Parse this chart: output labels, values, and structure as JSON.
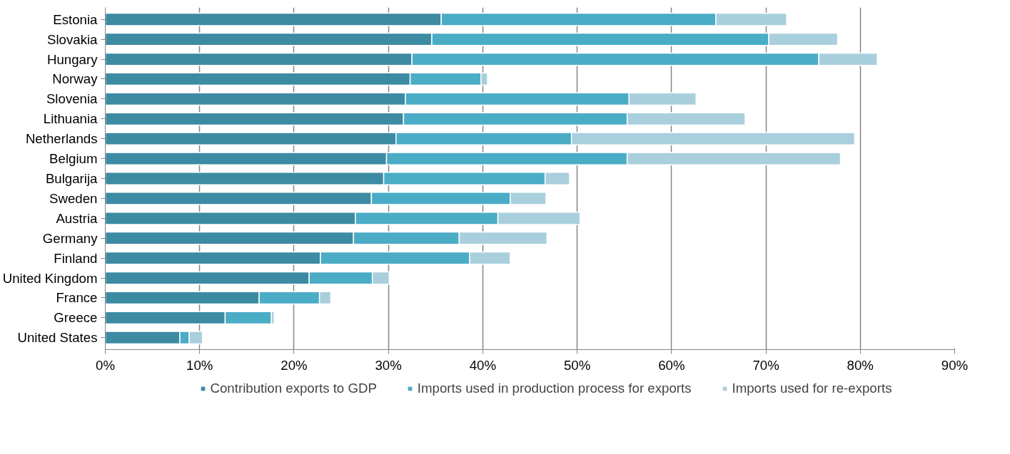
{
  "chart_data": {
    "type": "bar",
    "orientation": "horizontal",
    "stacked": true,
    "categories": [
      "Estonia",
      "Slovakia",
      "Hungary",
      "Norway",
      "Slovenia",
      "Lithuania",
      "Netherlands",
      "Belgium",
      "Bulgarija",
      "Sweden",
      "Austria",
      "Germany",
      "Finland",
      "United Kingdom",
      "France",
      "Greece",
      "United States"
    ],
    "series": [
      {
        "name": "Contribution exports to GDP",
        "color": "#3c8ba3",
        "values": [
          35.6,
          34.6,
          32.5,
          32.3,
          31.8,
          31.6,
          30.8,
          29.8,
          29.5,
          28.2,
          26.5,
          26.3,
          22.8,
          21.6,
          16.3,
          12.7,
          7.9
        ]
      },
      {
        "name": "Imports used in production process for exports",
        "color": "#4bacc6",
        "values": [
          29.1,
          35.7,
          43.1,
          7.5,
          23.7,
          23.7,
          18.6,
          25.5,
          17.1,
          14.7,
          15.1,
          11.2,
          15.8,
          6.7,
          6.4,
          4.9,
          1.0
        ]
      },
      {
        "name": "Imports used for re-exports",
        "color": "#a9cfdd",
        "values": [
          7.5,
          7.3,
          6.2,
          0.7,
          7.1,
          12.5,
          30.0,
          22.6,
          2.6,
          3.8,
          8.7,
          9.3,
          4.3,
          1.8,
          1.2,
          0.3,
          1.4
        ]
      }
    ],
    "xlim": [
      0,
      90
    ],
    "xticks": [
      {
        "value": 0,
        "label": "0%"
      },
      {
        "value": 10,
        "label": "10%"
      },
      {
        "value": 20,
        "label": "20%"
      },
      {
        "value": 30,
        "label": "30%"
      },
      {
        "value": 40,
        "label": "40%"
      },
      {
        "value": 50,
        "label": "50%"
      },
      {
        "value": 60,
        "label": "60%"
      },
      {
        "value": 70,
        "label": "70%"
      },
      {
        "value": 80,
        "label": "80%"
      },
      {
        "value": 90,
        "label": "90%"
      }
    ],
    "grid": "x",
    "legend": "bottom"
  }
}
